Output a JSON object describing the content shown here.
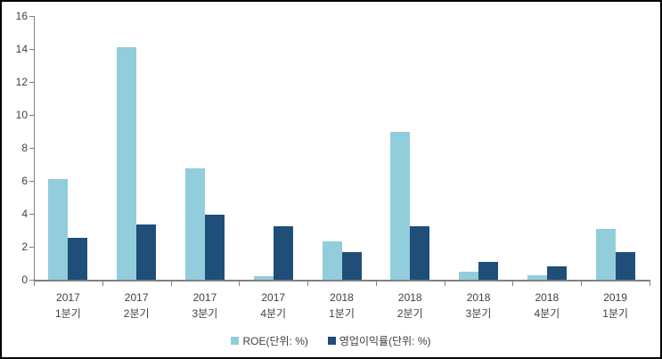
{
  "chart_data": {
    "type": "bar",
    "title": "",
    "xlabel": "",
    "ylabel": "",
    "categories": [
      "2017 1분기",
      "2017 2분기",
      "2017 3분기",
      "2017 4분기",
      "2018 1분기",
      "2018 2분기",
      "2018 3분기",
      "2018 4분기",
      "2019 1분기"
    ],
    "categories_lines": [
      [
        "2017",
        "1분기"
      ],
      [
        "2017",
        "2분기"
      ],
      [
        "2017",
        "3분기"
      ],
      [
        "2017",
        "4분기"
      ],
      [
        "2018",
        "1분기"
      ],
      [
        "2018",
        "2분기"
      ],
      [
        "2018",
        "3분기"
      ],
      [
        "2018",
        "4분기"
      ],
      [
        "2019",
        "1분기"
      ]
    ],
    "series": [
      {
        "name": "ROE(단위: %)",
        "color": "#92CDDC",
        "values": [
          6.1,
          14.1,
          6.75,
          0.2,
          2.3,
          9.0,
          0.5,
          0.25,
          3.1
        ]
      },
      {
        "name": "영업이익률(단위: %)",
        "color": "#1F4E79",
        "values": [
          2.55,
          3.35,
          3.95,
          3.25,
          1.7,
          3.25,
          1.1,
          0.8,
          1.7
        ]
      }
    ],
    "ylim": [
      0,
      16
    ],
    "yticks": [
      0,
      2,
      4,
      6,
      8,
      10,
      12,
      14,
      16
    ],
    "grid": false,
    "legend_position": "bottom",
    "axis_color": "#808080",
    "text_color": "#404040",
    "plot_background": "#FFFFFF",
    "border_color": "#000000"
  }
}
